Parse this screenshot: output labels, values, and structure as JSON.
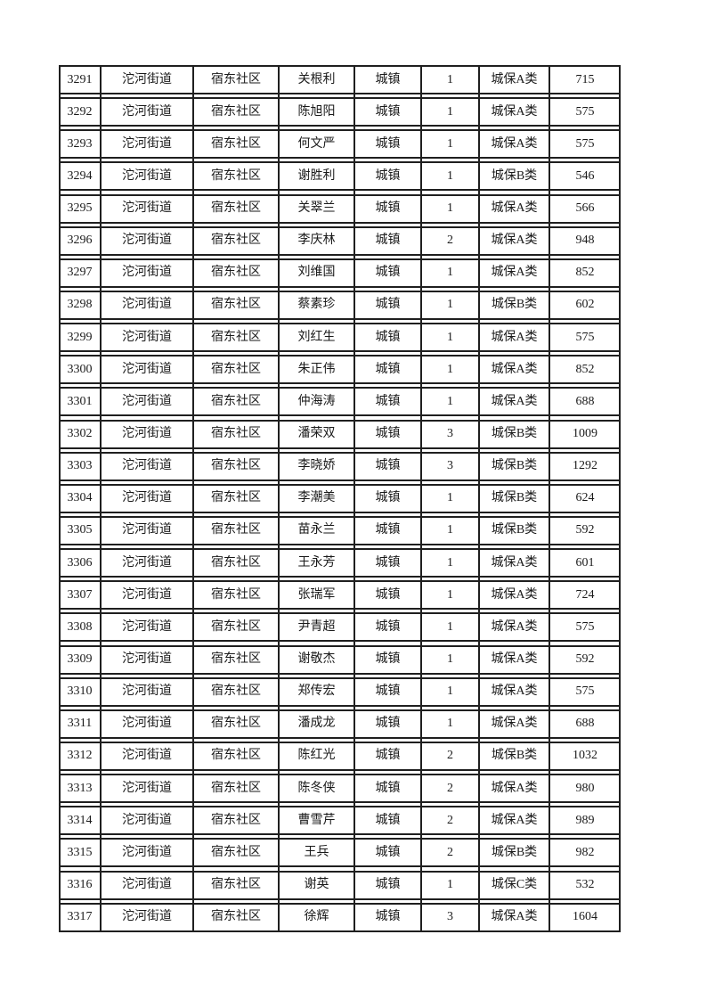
{
  "page": {
    "background_color": "#ffffff",
    "text_color": "#1a1a1a",
    "border_color": "#1f1f1f"
  },
  "table": {
    "rows": [
      [
        "3291",
        "沱河街道",
        "宿东社区",
        "关根利",
        "城镇",
        "1",
        "城保A类",
        "715"
      ],
      [
        "3292",
        "沱河街道",
        "宿东社区",
        "陈旭阳",
        "城镇",
        "1",
        "城保A类",
        "575"
      ],
      [
        "3293",
        "沱河街道",
        "宿东社区",
        "何文严",
        "城镇",
        "1",
        "城保A类",
        "575"
      ],
      [
        "3294",
        "沱河街道",
        "宿东社区",
        "谢胜利",
        "城镇",
        "1",
        "城保B类",
        "546"
      ],
      [
        "3295",
        "沱河街道",
        "宿东社区",
        "关翠兰",
        "城镇",
        "1",
        "城保A类",
        "566"
      ],
      [
        "3296",
        "沱河街道",
        "宿东社区",
        "李庆林",
        "城镇",
        "2",
        "城保A类",
        "948"
      ],
      [
        "3297",
        "沱河街道",
        "宿东社区",
        "刘维国",
        "城镇",
        "1",
        "城保A类",
        "852"
      ],
      [
        "3298",
        "沱河街道",
        "宿东社区",
        "蔡素珍",
        "城镇",
        "1",
        "城保B类",
        "602"
      ],
      [
        "3299",
        "沱河街道",
        "宿东社区",
        "刘红生",
        "城镇",
        "1",
        "城保A类",
        "575"
      ],
      [
        "3300",
        "沱河街道",
        "宿东社区",
        "朱正伟",
        "城镇",
        "1",
        "城保A类",
        "852"
      ],
      [
        "3301",
        "沱河街道",
        "宿东社区",
        "仲海涛",
        "城镇",
        "1",
        "城保A类",
        "688"
      ],
      [
        "3302",
        "沱河街道",
        "宿东社区",
        "潘荣双",
        "城镇",
        "3",
        "城保B类",
        "1009"
      ],
      [
        "3303",
        "沱河街道",
        "宿东社区",
        "李晓娇",
        "城镇",
        "3",
        "城保B类",
        "1292"
      ],
      [
        "3304",
        "沱河街道",
        "宿东社区",
        "李潮美",
        "城镇",
        "1",
        "城保B类",
        "624"
      ],
      [
        "3305",
        "沱河街道",
        "宿东社区",
        "苗永兰",
        "城镇",
        "1",
        "城保B类",
        "592"
      ],
      [
        "3306",
        "沱河街道",
        "宿东社区",
        "王永芳",
        "城镇",
        "1",
        "城保A类",
        "601"
      ],
      [
        "3307",
        "沱河街道",
        "宿东社区",
        "张瑞军",
        "城镇",
        "1",
        "城保A类",
        "724"
      ],
      [
        "3308",
        "沱河街道",
        "宿东社区",
        "尹青超",
        "城镇",
        "1",
        "城保A类",
        "575"
      ],
      [
        "3309",
        "沱河街道",
        "宿东社区",
        "谢敬杰",
        "城镇",
        "1",
        "城保A类",
        "592"
      ],
      [
        "3310",
        "沱河街道",
        "宿东社区",
        "郑传宏",
        "城镇",
        "1",
        "城保A类",
        "575"
      ],
      [
        "3311",
        "沱河街道",
        "宿东社区",
        "潘成龙",
        "城镇",
        "1",
        "城保A类",
        "688"
      ],
      [
        "3312",
        "沱河街道",
        "宿东社区",
        "陈红光",
        "城镇",
        "2",
        "城保B类",
        "1032"
      ],
      [
        "3313",
        "沱河街道",
        "宿东社区",
        "陈冬侠",
        "城镇",
        "2",
        "城保A类",
        "980"
      ],
      [
        "3314",
        "沱河街道",
        "宿东社区",
        "曹雪芹",
        "城镇",
        "2",
        "城保A类",
        "989"
      ],
      [
        "3315",
        "沱河街道",
        "宿东社区",
        "王兵",
        "城镇",
        "2",
        "城保B类",
        "982"
      ],
      [
        "3316",
        "沱河街道",
        "宿东社区",
        "谢英",
        "城镇",
        "1",
        "城保C类",
        "532"
      ],
      [
        "3317",
        "沱河街道",
        "宿东社区",
        "徐辉",
        "城镇",
        "3",
        "城保A类",
        "1604"
      ]
    ]
  }
}
